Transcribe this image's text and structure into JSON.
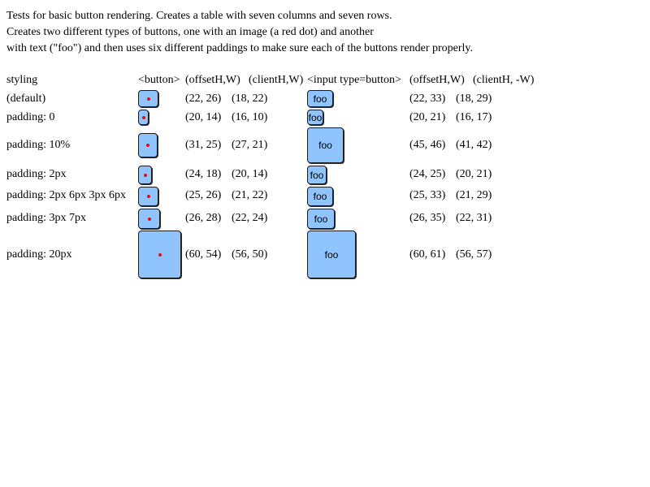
{
  "description": {
    "line1": "Tests for basic button rendering. Creates a table with seven columns and seven rows.",
    "line2": "Creates two different types of buttons, one with an image (a red dot) and another",
    "line3": "with text (\"foo\") and then uses six different paddings to make sure each of the buttons render properly."
  },
  "headers": {
    "styling": "styling",
    "button": "<button>",
    "offset1": "(offsetH,W)",
    "client1": "(clientH,W)",
    "input": "<input type=button>",
    "offset2": "(offsetH,W)",
    "client2": "(clientH, -W)"
  },
  "button_text": "foo",
  "rows": [
    {
      "styling": "(default)",
      "btn_offset": "(22, 26)",
      "btn_client": "(18, 22)",
      "input_offset": "(22, 33)",
      "input_client": "(18, 29)"
    },
    {
      "styling": "padding: 0",
      "btn_offset": "(20, 14)",
      "btn_client": "(16, 10)",
      "input_offset": "(20, 21)",
      "input_client": "(16, 17)"
    },
    {
      "styling": "padding: 10%",
      "btn_offset": "(31, 25)",
      "btn_client": "(27, 21)",
      "input_offset": "(45, 46)",
      "input_client": "(41, 42)"
    },
    {
      "styling": "padding: 2px",
      "btn_offset": "(24, 18)",
      "btn_client": "(20, 14)",
      "input_offset": "(24, 25)",
      "input_client": "(20, 21)"
    },
    {
      "styling": "padding: 2px 6px 3px 6px",
      "btn_offset": "(25, 26)",
      "btn_client": "(21, 22)",
      "input_offset": "(25, 33)",
      "input_client": "(21, 29)"
    },
    {
      "styling": "padding: 3px 7px",
      "btn_offset": "(26, 28)",
      "btn_client": "(22, 24)",
      "input_offset": "(26, 35)",
      "input_client": "(22, 31)"
    },
    {
      "styling": "padding: 20px",
      "btn_offset": "(60, 54)",
      "btn_client": "(56, 50)",
      "input_offset": "(60, 61)",
      "input_client": "(56, 57)"
    }
  ]
}
